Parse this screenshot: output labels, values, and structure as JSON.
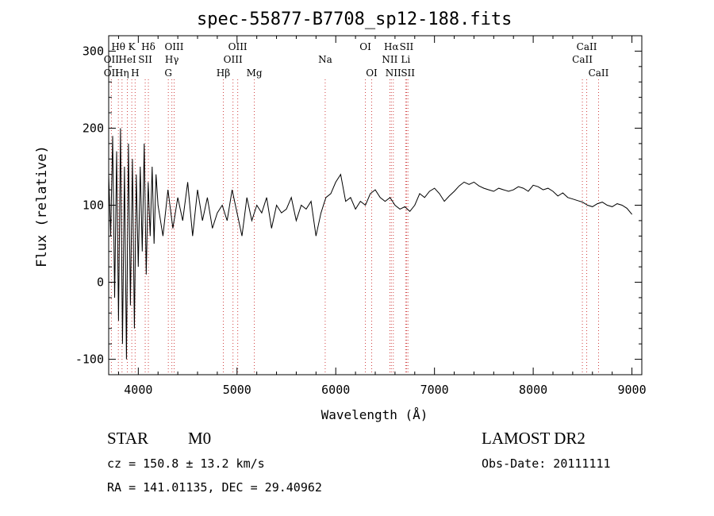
{
  "chart_data": {
    "type": "line",
    "title": "spec-55877-B7708_sp12-188.fits",
    "xlabel": "Wavelength (Å)",
    "ylabel": "Flux (relative)",
    "xlim": [
      3700,
      9100
    ],
    "ylim": [
      -120,
      320
    ],
    "xticks": [
      4000,
      5000,
      6000,
      7000,
      8000,
      9000
    ],
    "yticks": [
      -100,
      0,
      100,
      200,
      300
    ],
    "series": [
      {
        "name": "flux",
        "x": [
          3700,
          3720,
          3740,
          3760,
          3780,
          3800,
          3820,
          3840,
          3860,
          3880,
          3900,
          3920,
          3940,
          3960,
          3980,
          4000,
          4020,
          4040,
          4060,
          4080,
          4100,
          4120,
          4140,
          4160,
          4180,
          4200,
          4250,
          4300,
          4350,
          4400,
          4450,
          4500,
          4550,
          4600,
          4650,
          4700,
          4750,
          4800,
          4850,
          4900,
          4950,
          5000,
          5050,
          5100,
          5150,
          5200,
          5250,
          5300,
          5350,
          5400,
          5450,
          5500,
          5550,
          5600,
          5650,
          5700,
          5750,
          5800,
          5850,
          5900,
          5950,
          6000,
          6050,
          6100,
          6150,
          6200,
          6250,
          6300,
          6350,
          6400,
          6450,
          6500,
          6550,
          6600,
          6650,
          6700,
          6750,
          6800,
          6850,
          6900,
          6950,
          7000,
          7050,
          7100,
          7150,
          7200,
          7250,
          7300,
          7350,
          7400,
          7450,
          7500,
          7550,
          7600,
          7650,
          7700,
          7750,
          7800,
          7850,
          7900,
          7950,
          8000,
          8050,
          8100,
          8150,
          8200,
          8250,
          8300,
          8350,
          8400,
          8450,
          8500,
          8550,
          8600,
          8650,
          8700,
          8750,
          8800,
          8850,
          8900,
          8950,
          9000
        ],
        "y": [
          140,
          60,
          190,
          -20,
          170,
          -50,
          200,
          -80,
          150,
          -100,
          180,
          -30,
          160,
          -60,
          140,
          20,
          150,
          40,
          180,
          10,
          130,
          60,
          150,
          50,
          140,
          100,
          60,
          120,
          70,
          110,
          80,
          130,
          60,
          120,
          80,
          110,
          70,
          90,
          100,
          80,
          120,
          90,
          60,
          110,
          80,
          100,
          90,
          110,
          70,
          100,
          90,
          95,
          110,
          80,
          100,
          95,
          105,
          60,
          90,
          110,
          115,
          130,
          140,
          105,
          110,
          95,
          105,
          100,
          115,
          120,
          110,
          105,
          110,
          100,
          95,
          98,
          92,
          100,
          115,
          110,
          118,
          122,
          115,
          105,
          112,
          118,
          125,
          130,
          127,
          130,
          125,
          122,
          120,
          118,
          122,
          120,
          118,
          120,
          124,
          122,
          118,
          126,
          124,
          120,
          122,
          118,
          112,
          116,
          110,
          108,
          106,
          104,
          100,
          98,
          102,
          104,
          100,
          98,
          102,
          100,
          96,
          88
        ]
      }
    ],
    "line_labels": [
      {
        "text": "Hθ",
        "x": 3798,
        "row": 1
      },
      {
        "text": "K",
        "x": 3934,
        "row": 1
      },
      {
        "text": "Hδ",
        "x": 4102,
        "row": 1
      },
      {
        "text": "OIII",
        "x": 4363,
        "row": 1
      },
      {
        "text": "OIII",
        "x": 5007,
        "row": 1
      },
      {
        "text": "OI",
        "x": 6300,
        "row": 1
      },
      {
        "text": "Hα",
        "x": 6563,
        "row": 1
      },
      {
        "text": "SII",
        "x": 6717,
        "row": 1
      },
      {
        "text": "CaII",
        "x": 8542,
        "row": 1
      },
      {
        "text": "OII",
        "x": 3727,
        "row": 2
      },
      {
        "text": "HeI",
        "x": 3889,
        "row": 2
      },
      {
        "text": "SII",
        "x": 4070,
        "row": 2
      },
      {
        "text": "Hγ",
        "x": 4340,
        "row": 2
      },
      {
        "text": "OIII",
        "x": 4959,
        "row": 2
      },
      {
        "text": "Na",
        "x": 5893,
        "row": 2
      },
      {
        "text": "NII",
        "x": 6548,
        "row": 2
      },
      {
        "text": "Li",
        "x": 6708,
        "row": 2
      },
      {
        "text": "CaII",
        "x": 8498,
        "row": 2
      },
      {
        "text": "OII",
        "x": 3727,
        "row": 3
      },
      {
        "text": "Hη",
        "x": 3835,
        "row": 3
      },
      {
        "text": "H",
        "x": 3968,
        "row": 3
      },
      {
        "text": "G",
        "x": 4304,
        "row": 3
      },
      {
        "text": "Hβ",
        "x": 4861,
        "row": 3
      },
      {
        "text": "Mg",
        "x": 5175,
        "row": 3
      },
      {
        "text": "OI",
        "x": 6364,
        "row": 3
      },
      {
        "text": "NII",
        "x": 6583,
        "row": 3
      },
      {
        "text": "SII",
        "x": 6731,
        "row": 3
      },
      {
        "text": "CaII",
        "x": 8662,
        "row": 3
      }
    ],
    "line_positions": [
      3727,
      3798,
      3835,
      3889,
      3934,
      3968,
      4070,
      4102,
      4304,
      4340,
      4363,
      4861,
      4959,
      5007,
      5175,
      5893,
      6300,
      6364,
      6548,
      6563,
      6583,
      6708,
      6717,
      6731,
      8498,
      8542,
      8662
    ]
  },
  "info": {
    "object_class": "STAR",
    "subclass": "M0",
    "survey": "LAMOST DR2",
    "cz": "cz = 150.8 ± 13.2 km/s",
    "obs_date": "Obs-Date: 20111111",
    "coords": "RA = 141.01135, DEC =  29.40962"
  }
}
